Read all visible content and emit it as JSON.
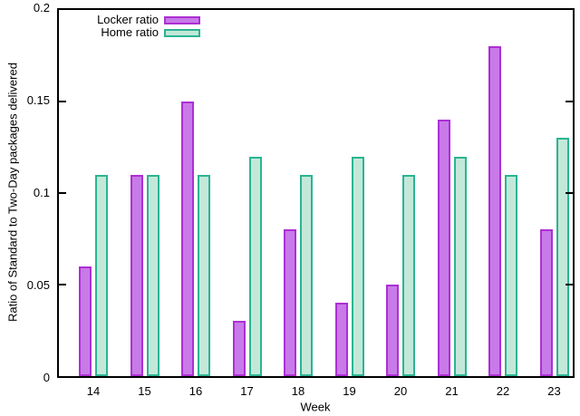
{
  "figure": {
    "background": "#ffffff",
    "axis_color": "#000000"
  },
  "legend": {
    "position": "top-left",
    "items": [
      {
        "label": "Locker ratio",
        "series_key": "locker"
      },
      {
        "label": "Home ratio",
        "series_key": "home"
      }
    ]
  },
  "chart_data": {
    "type": "bar",
    "title": "",
    "xlabel": "Week",
    "ylabel": "Ratio of Standard to Two-Day packages delivered",
    "categories": [
      "14",
      "15",
      "16",
      "17",
      "18",
      "19",
      "20",
      "21",
      "22",
      "23"
    ],
    "series": [
      {
        "name": "Locker ratio",
        "key": "locker",
        "values": [
          0.06,
          0.11,
          0.15,
          0.03,
          0.08,
          0.04,
          0.05,
          0.14,
          0.18,
          0.08
        ],
        "fill_color": "#c87ae8",
        "border_color": "#ad2fd4"
      },
      {
        "name": "Home ratio",
        "key": "home",
        "values": [
          0.11,
          0.11,
          0.11,
          0.12,
          0.11,
          0.12,
          0.11,
          0.12,
          0.11,
          0.13
        ],
        "fill_color": "#c3e8d9",
        "border_color": "#2bb492"
      }
    ],
    "ylim": [
      0,
      0.2
    ],
    "yticks": [
      0,
      0.05,
      0.1,
      0.15,
      0.2
    ],
    "ytick_labels": [
      "0",
      "0.05",
      "0.1",
      "0.15",
      "0.2"
    ],
    "grid": false,
    "legend_position": "top-left"
  }
}
